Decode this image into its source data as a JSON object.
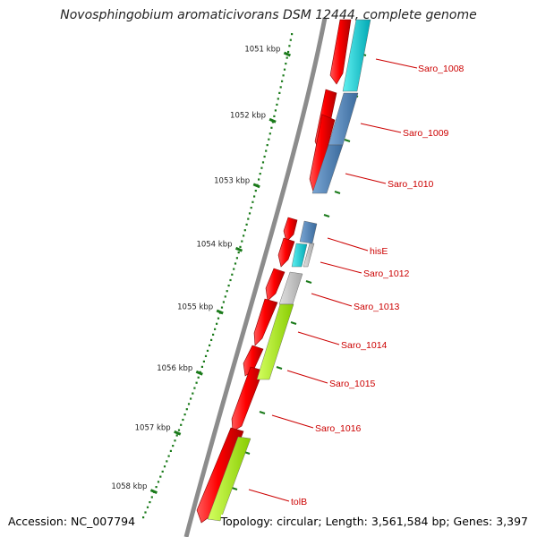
{
  "title": "Novosphingobium aromaticivorans DSM 12444, complete genome",
  "footer": {
    "accession": "Accession: NC_007794",
    "topology": "Topology: circular; Length: 3,561,584 bp; Genes: 3,397"
  },
  "ruler": {
    "labels": [
      "1051 kbp",
      "1052 kbp",
      "1053 kbp",
      "1054 kbp",
      "1055 kbp",
      "1056 kbp",
      "1057 kbp",
      "1058 kbp"
    ]
  },
  "genes": [
    "Saro_1008",
    "Saro_1009",
    "Saro_1010",
    "hisE",
    "Saro_1012",
    "Saro_1013",
    "Saro_1014",
    "Saro_1015",
    "Saro_1016",
    "tolB"
  ],
  "colors": {
    "backbone": "#8c8c8c",
    "cds": "#ff0000",
    "cog_cyan": "#00d0d8",
    "cog_steelblue": "#4a7fb5",
    "cog_gray": "#c0c0c0",
    "cog_lime": "#aaf000",
    "ruler": "#1a7a1a",
    "label": "#cc0000"
  }
}
